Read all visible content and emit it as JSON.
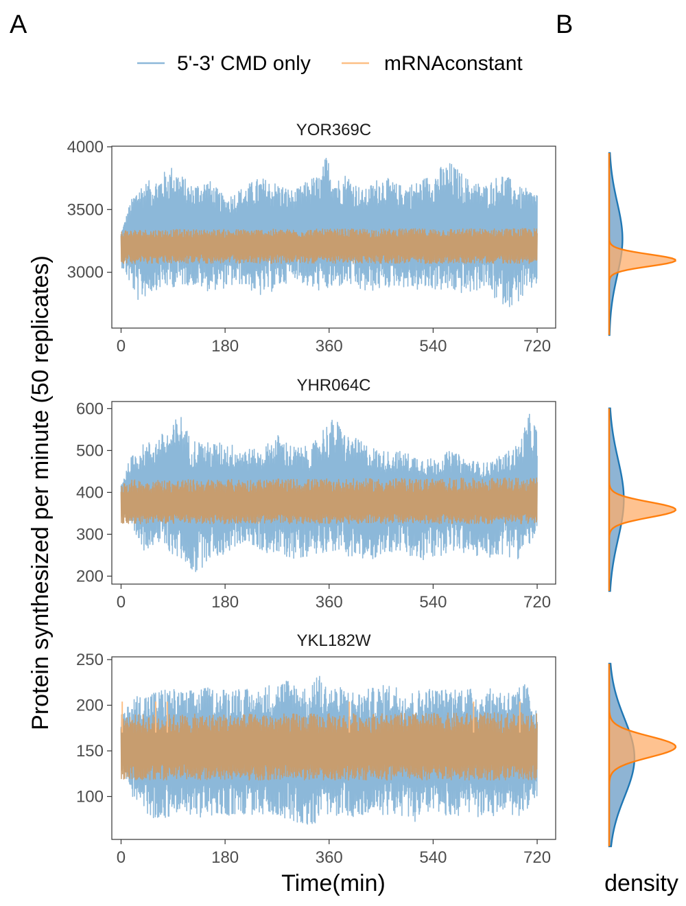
{
  "figure": {
    "panel_a_label": "A",
    "panel_b_label": "B",
    "x_axis_title": "Time(min)",
    "y_axis_title": "Protein synthesized per minute (50 replicates)",
    "density_axis_title": "density"
  },
  "legend": {
    "items": [
      {
        "label": "5'-3' CMD only",
        "color": "#8cb8d9"
      },
      {
        "label": "mRNAconstant",
        "color": "#fdbf85"
      }
    ]
  },
  "colors": {
    "cmd_line": "#8cb8d9",
    "const_line": "#c89c6c",
    "const_spike": "#fdbf85",
    "cmd_density_fill": "#7aa7cc",
    "cmd_density_line": "#1f77b4",
    "const_density_fill": "#fdae6b",
    "const_density_line": "#ff7f0e",
    "overlap_fill": "#8a8a78"
  },
  "chart_data": [
    {
      "type": "line",
      "title": "YOR369C",
      "xlabel": "Time(min)",
      "ylabel": "Protein synthesized per minute (50 replicates)",
      "xlim": [
        -16,
        752
      ],
      "ylim": [
        2555,
        4005
      ],
      "x_ticks": [
        0,
        180,
        360,
        540,
        720
      ],
      "y_ticks": [
        3000,
        3500,
        4000
      ],
      "x_range": [
        0,
        720
      ],
      "series": [
        {
          "name": "5'-3' CMD only",
          "center": 3320,
          "band_low": 2720,
          "band_high": 3940,
          "envelope_low": [
            [
              0,
              3050
            ],
            [
              15,
              2900
            ],
            [
              30,
              2760
            ],
            [
              60,
              2860
            ],
            [
              90,
              2880
            ],
            [
              120,
              2900
            ],
            [
              150,
              2850
            ],
            [
              180,
              2870
            ],
            [
              210,
              2900
            ],
            [
              240,
              2800
            ],
            [
              270,
              2860
            ],
            [
              300,
              2960
            ],
            [
              330,
              2850
            ],
            [
              360,
              2850
            ],
            [
              390,
              2900
            ],
            [
              420,
              2830
            ],
            [
              450,
              2860
            ],
            [
              480,
              2890
            ],
            [
              510,
              2850
            ],
            [
              540,
              2860
            ],
            [
              570,
              2840
            ],
            [
              600,
              2820
            ],
            [
              630,
              2880
            ],
            [
              650,
              2760
            ],
            [
              675,
              2720
            ],
            [
              700,
              2800
            ],
            [
              720,
              2900
            ]
          ],
          "envelope_high": [
            [
              0,
              3300
            ],
            [
              15,
              3550
            ],
            [
              30,
              3700
            ],
            [
              60,
              3750
            ],
            [
              90,
              3860
            ],
            [
              120,
              3700
            ],
            [
              150,
              3750
            ],
            [
              180,
              3600
            ],
            [
              210,
              3680
            ],
            [
              240,
              3760
            ],
            [
              270,
              3720
            ],
            [
              300,
              3650
            ],
            [
              330,
              3760
            ],
            [
              345,
              3780
            ],
            [
              355,
              3940
            ],
            [
              375,
              3750
            ],
            [
              390,
              3800
            ],
            [
              420,
              3650
            ],
            [
              450,
              3780
            ],
            [
              480,
              3700
            ],
            [
              510,
              3720
            ],
            [
              540,
              3800
            ],
            [
              555,
              3850
            ],
            [
              570,
              3880
            ],
            [
              600,
              3750
            ],
            [
              630,
              3700
            ],
            [
              660,
              3800
            ],
            [
              690,
              3680
            ],
            [
              720,
              3650
            ]
          ]
        },
        {
          "name": "mRNAconstant",
          "center": 3210,
          "band_low": 3070,
          "band_high": 3380,
          "envelope_low": [
            [
              0,
              3070
            ],
            [
              720,
              3070
            ]
          ],
          "envelope_high": [
            [
              0,
              3340
            ],
            [
              720,
              3350
            ]
          ]
        }
      ],
      "density": [
        {
          "name": "5'-3' CMD only",
          "mode": 3320,
          "relative_peak": 0.2
        },
        {
          "name": "mRNAconstant",
          "mode": 3150,
          "relative_peak": 1.0
        }
      ]
    },
    {
      "type": "line",
      "title": "YHR064C",
      "xlabel": "Time(min)",
      "ylabel": "Protein synthesized per minute (50 replicates)",
      "xlim": [
        -16,
        752
      ],
      "ylim": [
        181,
        617
      ],
      "x_ticks": [
        0,
        180,
        360,
        540,
        720
      ],
      "y_ticks": [
        200,
        300,
        400,
        500,
        600
      ],
      "x_range": [
        0,
        720
      ],
      "series": [
        {
          "name": "5'-3' CMD only",
          "center": 400,
          "band_low": 200,
          "band_high": 600,
          "envelope_low": [
            [
              0,
              350
            ],
            [
              20,
              290
            ],
            [
              40,
              260
            ],
            [
              60,
              280
            ],
            [
              90,
              250
            ],
            [
              110,
              230
            ],
            [
              130,
              200
            ],
            [
              150,
              240
            ],
            [
              180,
              250
            ],
            [
              210,
              280
            ],
            [
              240,
              260
            ],
            [
              270,
              250
            ],
            [
              300,
              240
            ],
            [
              330,
              250
            ],
            [
              360,
              260
            ],
            [
              390,
              250
            ],
            [
              420,
              230
            ],
            [
              450,
              250
            ],
            [
              480,
              260
            ],
            [
              510,
              230
            ],
            [
              540,
              240
            ],
            [
              570,
              260
            ],
            [
              600,
              250
            ],
            [
              630,
              240
            ],
            [
              660,
              250
            ],
            [
              690,
              240
            ],
            [
              720,
              300
            ]
          ],
          "envelope_high": [
            [
              0,
              420
            ],
            [
              15,
              480
            ],
            [
              30,
              510
            ],
            [
              60,
              530
            ],
            [
              90,
              560
            ],
            [
              100,
              600
            ],
            [
              120,
              530
            ],
            [
              150,
              520
            ],
            [
              180,
              520
            ],
            [
              210,
              510
            ],
            [
              240,
              500
            ],
            [
              270,
              540
            ],
            [
              300,
              510
            ],
            [
              330,
              510
            ],
            [
              350,
              560
            ],
            [
              370,
              580
            ],
            [
              390,
              540
            ],
            [
              420,
              520
            ],
            [
              450,
              500
            ],
            [
              480,
              500
            ],
            [
              510,
              490
            ],
            [
              540,
              480
            ],
            [
              570,
              500
            ],
            [
              600,
              480
            ],
            [
              630,
              470
            ],
            [
              660,
              490
            ],
            [
              690,
              520
            ],
            [
              705,
              590
            ],
            [
              720,
              560
            ]
          ]
        },
        {
          "name": "mRNAconstant",
          "center": 370,
          "band_low": 320,
          "band_high": 440,
          "envelope_low": [
            [
              0,
              325
            ],
            [
              720,
              325
            ]
          ],
          "envelope_high": [
            [
              0,
              430
            ],
            [
              720,
              435
            ]
          ]
        }
      ],
      "density": [
        {
          "name": "5'-3' CMD only",
          "mode": 400,
          "relative_peak": 0.22
        },
        {
          "name": "mRNAconstant",
          "mode": 375,
          "relative_peak": 1.0
        }
      ]
    },
    {
      "type": "line",
      "title": "YKL182W",
      "xlabel": "Time(min)",
      "ylabel": "Protein synthesized per minute (50 replicates)",
      "xlim": [
        -16,
        752
      ],
      "ylim": [
        53,
        253
      ],
      "x_ticks": [
        0,
        180,
        360,
        540,
        720
      ],
      "y_ticks": [
        100,
        150,
        200,
        250
      ],
      "x_range": [
        0,
        720
      ],
      "series": [
        {
          "name": "5'-3' CMD only",
          "center": 150,
          "band_low": 65,
          "band_high": 245,
          "envelope_low": [
            [
              0,
              130
            ],
            [
              20,
              100
            ],
            [
              40,
              80
            ],
            [
              60,
              75
            ],
            [
              90,
              78
            ],
            [
              120,
              80
            ],
            [
              150,
              75
            ],
            [
              180,
              78
            ],
            [
              210,
              80
            ],
            [
              240,
              78
            ],
            [
              270,
              80
            ],
            [
              300,
              72
            ],
            [
              330,
              68
            ],
            [
              360,
              80
            ],
            [
              390,
              78
            ],
            [
              420,
              75
            ],
            [
              450,
              80
            ],
            [
              480,
              78
            ],
            [
              510,
              72
            ],
            [
              540,
              80
            ],
            [
              570,
              78
            ],
            [
              600,
              80
            ],
            [
              630,
              75
            ],
            [
              660,
              80
            ],
            [
              690,
              78
            ],
            [
              720,
              95
            ]
          ],
          "envelope_high": [
            [
              0,
              185
            ],
            [
              20,
              210
            ],
            [
              50,
              215
            ],
            [
              80,
              220
            ],
            [
              110,
              215
            ],
            [
              140,
              220
            ],
            [
              170,
              218
            ],
            [
              200,
              222
            ],
            [
              230,
              215
            ],
            [
              260,
              225
            ],
            [
              290,
              230
            ],
            [
              310,
              225
            ],
            [
              330,
              215
            ],
            [
              335,
              245
            ],
            [
              350,
              225
            ],
            [
              380,
              220
            ],
            [
              410,
              215
            ],
            [
              440,
              220
            ],
            [
              470,
              225
            ],
            [
              500,
              215
            ],
            [
              530,
              220
            ],
            [
              560,
              218
            ],
            [
              590,
              222
            ],
            [
              620,
              215
            ],
            [
              650,
              220
            ],
            [
              680,
              215
            ],
            [
              700,
              225
            ],
            [
              720,
              200
            ]
          ]
        },
        {
          "name": "mRNAconstant",
          "center": 150,
          "band_low": 115,
          "band_high": 190,
          "envelope_low": [
            [
              0,
              118
            ],
            [
              720,
              118
            ]
          ],
          "envelope_high": [
            [
              0,
              190
            ],
            [
              720,
              192
            ]
          ],
          "spikes": [
            [
              2,
              204
            ],
            [
              60,
              204
            ],
            [
              80,
              204
            ],
            [
              395,
              204
            ],
            [
              610,
              204
            ],
            [
              690,
              204
            ]
          ]
        }
      ],
      "density": [
        {
          "name": "5'-3' CMD only",
          "mode": 150,
          "relative_peak": 0.38
        },
        {
          "name": "mRNAconstant",
          "mode": 162,
          "relative_peak": 1.0
        }
      ]
    }
  ]
}
